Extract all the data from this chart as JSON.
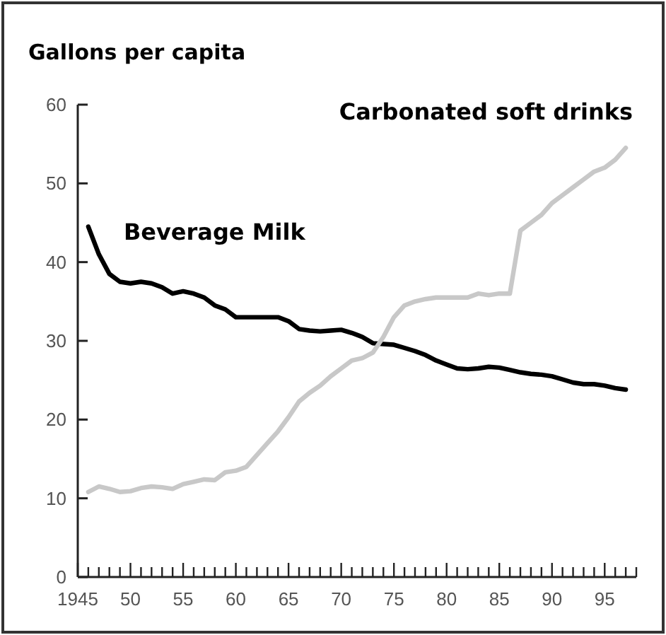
{
  "chart_data": {
    "type": "line",
    "ylabel": "Gallons per capita",
    "x": [
      1946,
      1947,
      1948,
      1949,
      1950,
      1951,
      1952,
      1953,
      1954,
      1955,
      1956,
      1957,
      1958,
      1959,
      1960,
      1961,
      1962,
      1963,
      1964,
      1965,
      1966,
      1967,
      1968,
      1969,
      1970,
      1971,
      1972,
      1973,
      1974,
      1975,
      1976,
      1977,
      1978,
      1979,
      1980,
      1981,
      1982,
      1983,
      1984,
      1985,
      1986,
      1987,
      1988,
      1989,
      1990,
      1991,
      1992,
      1993,
      1994,
      1995,
      1996,
      1997
    ],
    "series": [
      {
        "name": "Beverage Milk",
        "color": "#000000",
        "values": [
          44.5,
          41,
          38.5,
          37.5,
          37.3,
          37.5,
          37.3,
          36.8,
          36,
          36.3,
          36,
          35.5,
          34.5,
          34,
          33,
          33,
          33,
          33,
          33,
          32.5,
          31.5,
          31.3,
          31.2,
          31.3,
          31.4,
          31,
          30.5,
          29.7,
          29.6,
          29.5,
          29.1,
          28.7,
          28.2,
          27.5,
          27,
          26.5,
          26.4,
          26.5,
          26.7,
          26.6,
          26.3,
          26,
          25.8,
          25.7,
          25.5,
          25.1,
          24.7,
          24.5,
          24.5,
          24.3,
          24,
          23.8
        ]
      },
      {
        "name": "Carbonated soft drinks",
        "color": "#c8c8c8",
        "values": [
          10.8,
          11.5,
          11.2,
          10.8,
          10.9,
          11.3,
          11.5,
          11.4,
          11.2,
          11.8,
          12.1,
          12.4,
          12.3,
          13.3,
          13.5,
          14,
          15.5,
          17,
          18.5,
          20.3,
          22.3,
          23.4,
          24.3,
          25.5,
          26.5,
          27.5,
          27.8,
          28.5,
          30.5,
          33,
          34.5,
          35,
          35.3,
          35.5,
          35.5,
          35.5,
          35.5,
          36,
          35.8,
          36,
          36,
          44,
          45,
          46,
          47.5,
          48.5,
          49.5,
          50.5,
          51.5,
          52,
          53,
          54.5
        ]
      }
    ],
    "xlim": [
      1945,
      1998
    ],
    "xticks": [
      {
        "value": 1945,
        "label": "1945"
      },
      {
        "value": 1946,
        "label": null
      },
      {
        "value": 1947,
        "label": null
      },
      {
        "value": 1948,
        "label": null
      },
      {
        "value": 1949,
        "label": null
      },
      {
        "value": 1950,
        "label": "50"
      },
      {
        "value": 1951,
        "label": null
      },
      {
        "value": 1952,
        "label": null
      },
      {
        "value": 1953,
        "label": null
      },
      {
        "value": 1954,
        "label": null
      },
      {
        "value": 1955,
        "label": "55"
      },
      {
        "value": 1956,
        "label": null
      },
      {
        "value": 1957,
        "label": null
      },
      {
        "value": 1958,
        "label": null
      },
      {
        "value": 1959,
        "label": null
      },
      {
        "value": 1960,
        "label": "60"
      },
      {
        "value": 1961,
        "label": null
      },
      {
        "value": 1962,
        "label": null
      },
      {
        "value": 1963,
        "label": null
      },
      {
        "value": 1964,
        "label": null
      },
      {
        "value": 1965,
        "label": "65"
      },
      {
        "value": 1966,
        "label": null
      },
      {
        "value": 1967,
        "label": null
      },
      {
        "value": 1968,
        "label": null
      },
      {
        "value": 1969,
        "label": null
      },
      {
        "value": 1970,
        "label": "70"
      },
      {
        "value": 1971,
        "label": null
      },
      {
        "value": 1972,
        "label": null
      },
      {
        "value": 1973,
        "label": null
      },
      {
        "value": 1974,
        "label": null
      },
      {
        "value": 1975,
        "label": "75"
      },
      {
        "value": 1976,
        "label": null
      },
      {
        "value": 1977,
        "label": null
      },
      {
        "value": 1978,
        "label": null
      },
      {
        "value": 1979,
        "label": null
      },
      {
        "value": 1980,
        "label": "80"
      },
      {
        "value": 1981,
        "label": null
      },
      {
        "value": 1982,
        "label": null
      },
      {
        "value": 1983,
        "label": null
      },
      {
        "value": 1984,
        "label": null
      },
      {
        "value": 1985,
        "label": "85"
      },
      {
        "value": 1986,
        "label": null
      },
      {
        "value": 1987,
        "label": null
      },
      {
        "value": 1988,
        "label": null
      },
      {
        "value": 1989,
        "label": null
      },
      {
        "value": 1990,
        "label": "90"
      },
      {
        "value": 1991,
        "label": null
      },
      {
        "value": 1992,
        "label": null
      },
      {
        "value": 1993,
        "label": null
      },
      {
        "value": 1994,
        "label": null
      },
      {
        "value": 1995,
        "label": "95"
      },
      {
        "value": 1996,
        "label": null
      },
      {
        "value": 1997,
        "label": null
      },
      {
        "value": 1998,
        "label": null
      }
    ],
    "ylim": [
      0,
      60
    ],
    "yticks": [
      0,
      10,
      20,
      30,
      40,
      50,
      60
    ],
    "grid": false,
    "marker": "none",
    "line_style": "solid"
  }
}
